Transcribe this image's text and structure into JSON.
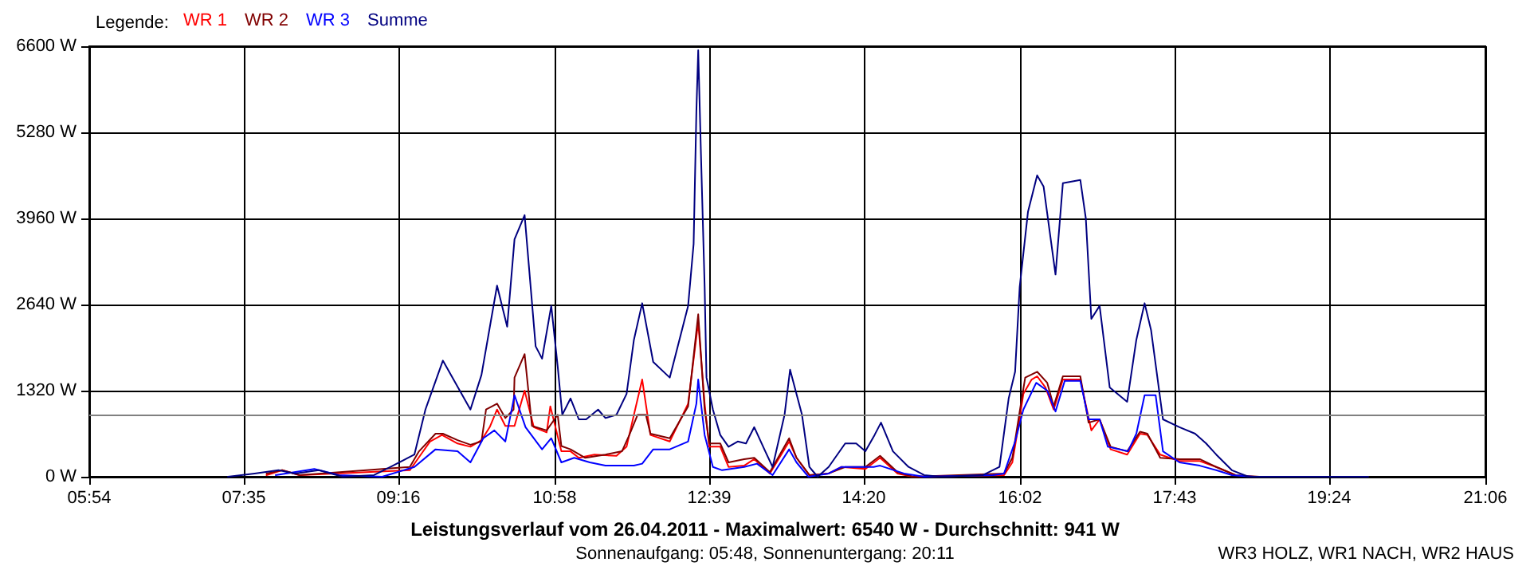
{
  "chart_data": {
    "type": "line",
    "title": "Leistungsverlauf vom 26.04.2011 - Maximalwert: 6540 W - Durchschnitt: 941 W",
    "subtitle": "Sonnenaufgang: 05:48, Sonnenuntergang: 20:11",
    "legend_title": "Legende:",
    "annotations": [
      "WR3 HOLZ, WR1 NACH, WR2 HAUS"
    ],
    "xlim": [
      5.9,
      21.1
    ],
    "xticks": [
      {
        "value": 5.9,
        "label": "05:54"
      },
      {
        "value": 7.5833,
        "label": "07:35"
      },
      {
        "value": 9.2667,
        "label": "09:16"
      },
      {
        "value": 10.9667,
        "label": "10:58"
      },
      {
        "value": 12.65,
        "label": "12:39"
      },
      {
        "value": 14.3333,
        "label": "14:20"
      },
      {
        "value": 16.0333,
        "label": "16:02"
      },
      {
        "value": 17.7167,
        "label": "17:43"
      },
      {
        "value": 19.4,
        "label": "19:24"
      },
      {
        "value": 21.1,
        "label": "21:06"
      }
    ],
    "ylim": [
      0,
      6600
    ],
    "yticks": [
      {
        "value": 0,
        "label": "0 W"
      },
      {
        "value": 1320,
        "label": "1320 W"
      },
      {
        "value": 2640,
        "label": "2640 W"
      },
      {
        "value": 3960,
        "label": "3960 W"
      },
      {
        "value": 5280,
        "label": "5280 W"
      },
      {
        "value": 6600,
        "label": "6600 W"
      }
    ],
    "grid": true,
    "legend": "top left",
    "marker": "none",
    "line_style": "solid",
    "ref_lines": [
      {
        "axis": "y",
        "value": 941,
        "color": "#808080"
      }
    ],
    "series": [
      {
        "name": "WR 1",
        "color": "#ff0000",
        "x": [
          7.83,
          8.0,
          8.19,
          9.39,
          9.49,
          9.61,
          9.74,
          9.91,
          10.05,
          10.17,
          10.26,
          10.34,
          10.43,
          10.53,
          10.64,
          10.74,
          10.88,
          10.92,
          11.04,
          11.14,
          11.23,
          11.4,
          11.64,
          11.75,
          11.83,
          11.92,
          12.01,
          12.22,
          12.42,
          12.53,
          12.6,
          12.65,
          12.77,
          12.86,
          13.03,
          13.14,
          13.31,
          13.52,
          13.6,
          13.74,
          13.95,
          14.09,
          14.35,
          14.51,
          14.7,
          14.87,
          15.86,
          15.95,
          16.03,
          16.07,
          16.16,
          16.22,
          16.31,
          16.4,
          16.5,
          16.69,
          16.81,
          16.9,
          17.02,
          17.2,
          17.34,
          17.42,
          17.56,
          17.77,
          17.99,
          18.17,
          18.38
        ],
        "values": [
          25,
          100,
          25,
          100,
          300,
          540,
          640,
          510,
          460,
          560,
          760,
          1030,
          780,
          780,
          1320,
          760,
          680,
          1080,
          390,
          390,
          290,
          340,
          320,
          460,
          950,
          1490,
          640,
          540,
          1120,
          2370,
          1120,
          460,
          460,
          150,
          170,
          270,
          50,
          540,
          290,
          25,
          50,
          150,
          120,
          290,
          50,
          0,
          25,
          220,
          900,
          1270,
          1490,
          1540,
          1370,
          1030,
          1490,
          1490,
          710,
          880,
          420,
          340,
          660,
          640,
          340,
          240,
          240,
          150,
          25
        ]
      },
      {
        "name": "WR 2",
        "color": "#800000",
        "x": [
          7.83,
          8.0,
          8.19,
          9.39,
          9.49,
          9.67,
          9.75,
          9.91,
          10.05,
          10.17,
          10.22,
          10.34,
          10.43,
          10.52,
          10.53,
          10.64,
          10.72,
          10.88,
          11.0,
          11.04,
          11.14,
          11.3,
          11.52,
          11.7,
          11.78,
          11.87,
          11.96,
          12.01,
          12.22,
          12.42,
          12.53,
          12.6,
          12.65,
          12.77,
          12.86,
          13.03,
          13.14,
          13.31,
          13.52,
          13.6,
          13.74,
          13.95,
          14.13,
          14.35,
          14.51,
          14.7,
          14.87,
          15.86,
          15.95,
          16.03,
          16.09,
          16.22,
          16.33,
          16.4,
          16.5,
          16.69,
          16.78,
          16.9,
          17.02,
          17.2,
          17.34,
          17.42,
          17.56,
          17.77,
          17.99,
          18.17,
          18.38,
          18.64,
          19.82
        ],
        "values": [
          50,
          100,
          25,
          150,
          390,
          660,
          660,
          560,
          490,
          540,
          1030,
          1120,
          900,
          1030,
          1520,
          1880,
          780,
          710,
          950,
          470,
          420,
          290,
          340,
          390,
          640,
          950,
          950,
          660,
          590,
          1080,
          2490,
          1030,
          510,
          510,
          220,
          270,
          290,
          70,
          590,
          290,
          25,
          50,
          150,
          150,
          320,
          70,
          0,
          50,
          290,
          1000,
          1520,
          1610,
          1440,
          1080,
          1540,
          1540,
          830,
          880,
          460,
          390,
          690,
          660,
          290,
          270,
          270,
          150,
          25,
          0,
          0
        ]
      },
      {
        "name": "WR 3",
        "color": "#0000ff",
        "x": [
          7.93,
          8.35,
          8.62,
          9.09,
          9.44,
          9.67,
          9.91,
          10.05,
          10.19,
          10.31,
          10.43,
          10.53,
          10.65,
          10.83,
          10.93,
          11.04,
          11.18,
          11.35,
          11.52,
          11.83,
          11.92,
          12.04,
          12.22,
          12.42,
          12.51,
          12.53,
          12.6,
          12.69,
          12.79,
          13.03,
          13.17,
          13.34,
          13.52,
          13.6,
          13.73,
          13.95,
          14.09,
          14.3,
          14.44,
          14.51,
          14.77,
          14.99,
          15.74,
          15.86,
          15.98,
          16.07,
          16.21,
          16.33,
          16.42,
          16.52,
          16.69,
          16.78,
          16.9,
          16.99,
          17.21,
          17.3,
          17.39,
          17.51,
          17.59,
          17.77,
          17.99,
          18.17,
          18.34,
          18.58,
          19.82
        ],
        "values": [
          25,
          120,
          25,
          0,
          150,
          420,
          390,
          220,
          590,
          710,
          540,
          1250,
          760,
          420,
          590,
          220,
          290,
          220,
          170,
          170,
          200,
          420,
          420,
          540,
          1120,
          1490,
          640,
          150,
          100,
          150,
          200,
          25,
          420,
          220,
          0,
          50,
          150,
          150,
          150,
          170,
          50,
          0,
          25,
          50,
          540,
          1030,
          1440,
          1320,
          1000,
          1470,
          1470,
          880,
          880,
          460,
          390,
          660,
          1250,
          1250,
          390,
          220,
          170,
          100,
          25,
          0,
          0
        ]
      },
      {
        "name": "Summe",
        "color": "#000080",
        "x": [
          7.41,
          7.7,
          7.96,
          8.14,
          8.4,
          8.66,
          9.0,
          9.18,
          9.44,
          9.56,
          9.75,
          10.05,
          10.17,
          10.34,
          10.45,
          10.53,
          10.64,
          10.76,
          10.83,
          10.93,
          11.0,
          11.05,
          11.14,
          11.23,
          11.31,
          11.44,
          11.52,
          11.64,
          11.75,
          11.83,
          11.92,
          12.04,
          12.22,
          12.42,
          12.48,
          12.51,
          12.53,
          12.56,
          12.6,
          12.62,
          12.69,
          12.77,
          12.86,
          12.96,
          13.05,
          13.14,
          13.26,
          13.34,
          13.47,
          13.53,
          13.66,
          13.74,
          13.83,
          13.95,
          14.13,
          14.25,
          14.35,
          14.45,
          14.52,
          14.65,
          14.82,
          14.99,
          15.17,
          15.63,
          15.81,
          15.91,
          15.98,
          16.03,
          16.12,
          16.22,
          16.29,
          16.42,
          16.5,
          16.69,
          16.75,
          16.81,
          16.9,
          17.01,
          17.2,
          17.3,
          17.39,
          17.46,
          17.59,
          17.77,
          17.94,
          18.06,
          18.17,
          18.34,
          18.52,
          19.82
        ],
        "values": [
          0,
          50,
          100,
          50,
          100,
          0,
          25,
          150,
          340,
          1030,
          1780,
          1030,
          1560,
          2930,
          2300,
          3640,
          4010,
          2000,
          1810,
          2620,
          1690,
          950,
          1200,
          880,
          880,
          1030,
          900,
          950,
          1270,
          2100,
          2660,
          1760,
          1520,
          2620,
          3570,
          5600,
          6540,
          4940,
          2910,
          1520,
          1030,
          640,
          460,
          540,
          510,
          760,
          390,
          150,
          950,
          1640,
          950,
          150,
          0,
          150,
          510,
          510,
          390,
          640,
          830,
          390,
          150,
          25,
          0,
          25,
          150,
          1200,
          1610,
          2910,
          4060,
          4620,
          4450,
          3100,
          4500,
          4550,
          3960,
          2420,
          2620,
          1370,
          1150,
          2100,
          2660,
          2250,
          880,
          760,
          660,
          510,
          340,
          100,
          0,
          0
        ]
      }
    ]
  }
}
